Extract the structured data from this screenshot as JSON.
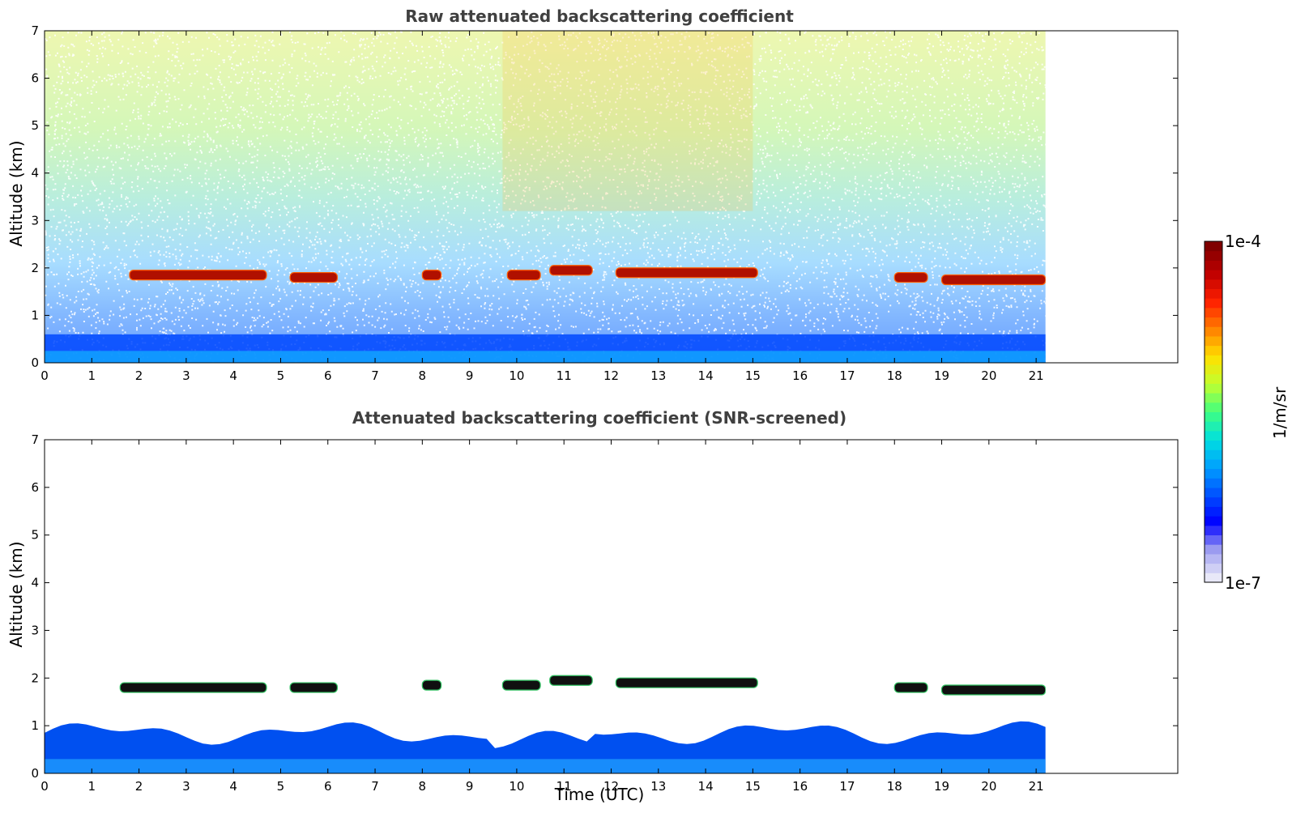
{
  "chart_data": [
    {
      "type": "heatmap",
      "title": "Raw attenuated backscattering coefficient",
      "xlabel": "",
      "ylabel": "Altitude (km)",
      "xlim": [
        0,
        24
      ],
      "ylim": [
        0,
        7
      ],
      "xticks": [
        "0",
        "1",
        "2",
        "3",
        "4",
        "5",
        "6",
        "7",
        "8",
        "9",
        "10",
        "11",
        "12",
        "13",
        "14",
        "15",
        "16",
        "17",
        "18",
        "19",
        "20",
        "21"
      ],
      "yticks": [
        "0",
        "1",
        "2",
        "3",
        "4",
        "5",
        "6",
        "7"
      ],
      "data_extent_x": [
        0,
        21.2
      ],
      "noisy": true,
      "cloud_layers": [
        {
          "x": [
            1.8,
            4.7
          ],
          "altitude_km": 1.85
        },
        {
          "x": [
            5.2,
            6.2
          ],
          "altitude_km": 1.8
        },
        {
          "x": [
            8.0,
            8.4
          ],
          "altitude_km": 1.85
        },
        {
          "x": [
            9.8,
            10.5
          ],
          "altitude_km": 1.85
        },
        {
          "x": [
            10.7,
            11.6
          ],
          "altitude_km": 1.95
        },
        {
          "x": [
            12.1,
            15.1
          ],
          "altitude_km": 1.9
        },
        {
          "x": [
            18.0,
            18.7
          ],
          "altitude_km": 1.8
        },
        {
          "x": [
            19.0,
            21.2
          ],
          "altitude_km": 1.75
        }
      ],
      "grid": false
    },
    {
      "type": "heatmap",
      "title": "Attenuated backscattering coefficient (SNR-screened)",
      "xlabel": "Time (UTC)",
      "ylabel": "Altitude (km)",
      "xlim": [
        0,
        24
      ],
      "ylim": [
        0,
        7
      ],
      "xticks": [
        "0",
        "1",
        "2",
        "3",
        "4",
        "5",
        "6",
        "7",
        "8",
        "9",
        "10",
        "11",
        "12",
        "13",
        "14",
        "15",
        "16",
        "17",
        "18",
        "19",
        "20",
        "21"
      ],
      "yticks": [
        "0",
        "1",
        "2",
        "3",
        "4",
        "5",
        "6",
        "7"
      ],
      "data_extent_x": [
        0,
        21.2
      ],
      "noisy": false,
      "cloud_layers": [
        {
          "x": [
            1.6,
            4.7
          ],
          "altitude_km": 1.8
        },
        {
          "x": [
            5.2,
            6.2
          ],
          "altitude_km": 1.8
        },
        {
          "x": [
            8.0,
            8.4
          ],
          "altitude_km": 1.85
        },
        {
          "x": [
            9.7,
            10.5
          ],
          "altitude_km": 1.85
        },
        {
          "x": [
            10.7,
            11.6
          ],
          "altitude_km": 1.95
        },
        {
          "x": [
            12.1,
            15.1
          ],
          "altitude_km": 1.9
        },
        {
          "x": [
            18.0,
            18.7
          ],
          "altitude_km": 1.8
        },
        {
          "x": [
            19.0,
            21.2
          ],
          "altitude_km": 1.75
        }
      ],
      "grid": false
    }
  ],
  "colorbar": {
    "label": "1/m/sr",
    "max_label": "1e-4",
    "min_label": "1e-7",
    "scale": "log",
    "range": [
      1e-07,
      0.0001
    ],
    "colormap": [
      "#e8e8f8",
      "#a0a0f0",
      "#0000ff",
      "#0050ff",
      "#00a0ff",
      "#00e0e0",
      "#40ff80",
      "#c0ff30",
      "#ffe000",
      "#ff8000",
      "#ff2000",
      "#c00000",
      "#800000"
    ]
  }
}
